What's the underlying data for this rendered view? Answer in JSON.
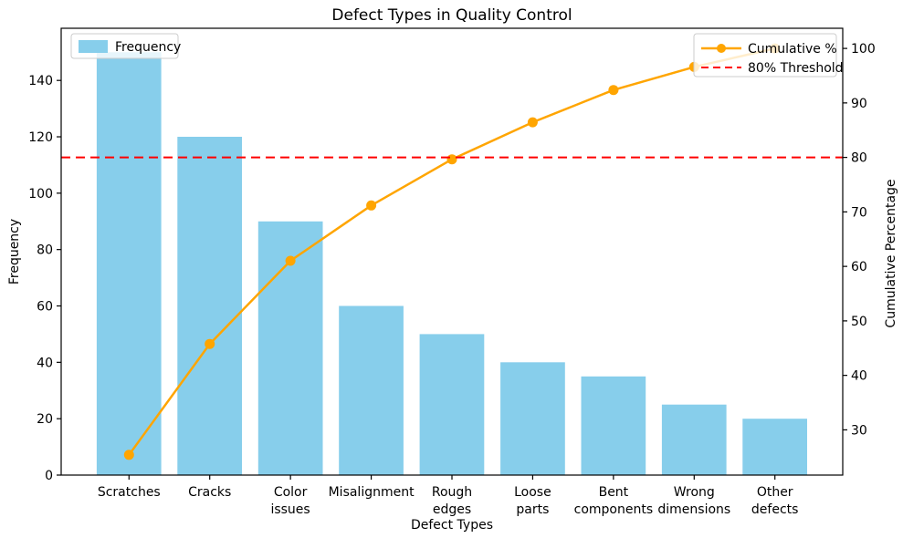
{
  "chart_data": {
    "type": "bar",
    "subtype": "pareto",
    "title": "Defect Types in Quality Control",
    "xlabel": "Defect Types",
    "ylabel_left": "Frequency",
    "ylabel_right": "Cumulative Percentage",
    "grid": false,
    "categories": [
      "Scratches",
      "Cracks",
      "Color issues",
      "Misalignment",
      "Rough edges",
      "Loose parts",
      "Bent components",
      "Wrong dimensions",
      "Other defects"
    ],
    "categories_wrapped": [
      [
        "Scratches"
      ],
      [
        "Cracks"
      ],
      [
        "Color",
        "issues"
      ],
      [
        "Misalignment"
      ],
      [
        "Rough",
        "edges"
      ],
      [
        "Loose",
        "parts"
      ],
      [
        "Bent",
        "components"
      ],
      [
        "Wrong",
        "dimensions"
      ],
      [
        "Other",
        "defects"
      ]
    ],
    "series": [
      {
        "name": "Frequency",
        "type": "bar",
        "color": "#87CEEB",
        "values": [
          150,
          120,
          90,
          60,
          50,
          40,
          35,
          25,
          20
        ]
      },
      {
        "name": "Cumulative %",
        "type": "line",
        "color": "#FFA500",
        "marker": "circle",
        "values": [
          25.42,
          45.76,
          61.02,
          71.19,
          79.66,
          86.44,
          92.37,
          96.61,
          100.0
        ]
      }
    ],
    "threshold": {
      "name": "80% Threshold",
      "value": 80,
      "color": "#FF0000",
      "style": "dashed"
    },
    "left_axis": {
      "ticks": [
        0,
        20,
        40,
        60,
        80,
        100,
        120,
        140
      ],
      "lim": [
        0,
        158.5
      ]
    },
    "right_axis": {
      "ticks": [
        30,
        40,
        50,
        60,
        70,
        80,
        90,
        100
      ],
      "lim": [
        21.7,
        103.7
      ]
    },
    "legend_left": {
      "entries": [
        {
          "label": "Frequency",
          "swatch": "#87CEEB",
          "kind": "patch"
        }
      ],
      "position": "upper-left"
    },
    "legend_right": {
      "entries": [
        {
          "label": "Cumulative %",
          "swatch": "#FFA500",
          "kind": "line-marker"
        },
        {
          "label": "80% Threshold",
          "swatch": "#FF0000",
          "kind": "dashed-line"
        }
      ],
      "position": "upper-right"
    }
  }
}
